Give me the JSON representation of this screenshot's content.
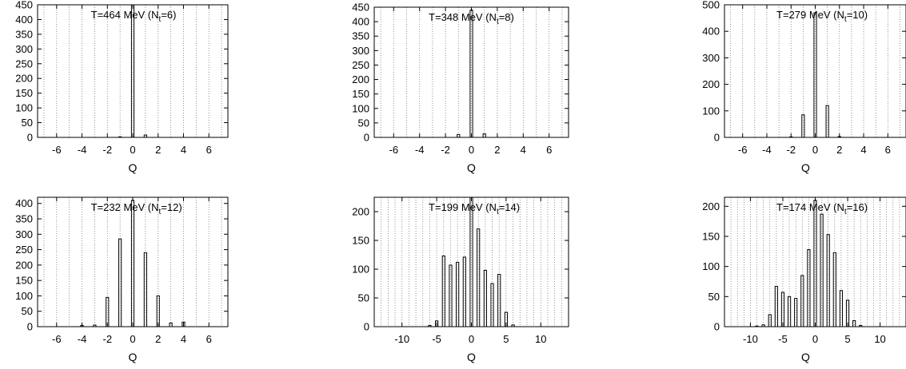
{
  "chart_data": [
    {
      "type": "bar",
      "title": "T=464 MeV (N_t=6)",
      "title_main": "T=464 MeV (N",
      "title_sub": "t",
      "title_tail": "=6)",
      "xlabel": "Q",
      "ylabel": "",
      "xlim": [
        -7.5,
        7.5
      ],
      "ylim": [
        0,
        450
      ],
      "xticks": [
        -6,
        -4,
        -2,
        0,
        2,
        4,
        6
      ],
      "yticks": [
        0,
        50,
        100,
        150,
        200,
        250,
        300,
        350,
        400,
        450
      ],
      "grid": "vertical dotted lines at each integer Q",
      "x": [
        -1,
        0,
        1
      ],
      "values": [
        2,
        450,
        8
      ]
    },
    {
      "type": "bar",
      "title": "T=348 MeV (N_t=8)",
      "title_main": "T=348 MeV (N",
      "title_sub": "t",
      "title_tail": "=8)",
      "xlabel": "Q",
      "ylabel": "",
      "xlim": [
        -7.5,
        7.5
      ],
      "ylim": [
        0,
        450
      ],
      "xticks": [
        -6,
        -4,
        -2,
        0,
        2,
        4,
        6
      ],
      "yticks": [
        0,
        50,
        100,
        150,
        200,
        250,
        300,
        350,
        400,
        450
      ],
      "grid": "vertical dotted lines at each integer Q",
      "x": [
        -1,
        0,
        1
      ],
      "values": [
        10,
        440,
        12
      ]
    },
    {
      "type": "bar",
      "title": "T=279 MeV (N_t=10)",
      "title_main": "T=279 MeV (N",
      "title_sub": "t",
      "title_tail": "=10)",
      "xlabel": "Q",
      "ylabel": "",
      "xlim": [
        -7.5,
        7.5
      ],
      "ylim": [
        0,
        500
      ],
      "xticks": [
        -6,
        -4,
        -2,
        0,
        2,
        4,
        6
      ],
      "yticks": [
        0,
        100,
        200,
        300,
        400,
        500
      ],
      "grid": "vertical dotted lines at each integer Q",
      "x": [
        -2,
        -1,
        0,
        1,
        2
      ],
      "values": [
        2,
        85,
        470,
        120,
        3
      ]
    },
    {
      "type": "bar",
      "title": "T=232 MeV (N_t=12)",
      "title_main": "T=232 MeV (N",
      "title_sub": "t",
      "title_tail": "=12)",
      "xlabel": "Q",
      "ylabel": "",
      "xlim": [
        -7.5,
        7.5
      ],
      "ylim": [
        0,
        420
      ],
      "xticks": [
        -6,
        -4,
        -2,
        0,
        2,
        4,
        6
      ],
      "yticks": [
        0,
        50,
        100,
        150,
        200,
        250,
        300,
        350,
        400
      ],
      "grid": "vertical dotted lines at each integer Q",
      "x": [
        -4,
        -3,
        -2,
        -1,
        0,
        1,
        2,
        3,
        4
      ],
      "values": [
        4,
        5,
        95,
        285,
        410,
        240,
        100,
        12,
        15
      ]
    },
    {
      "type": "bar",
      "title": "T=199 MeV (N_t=14)",
      "title_main": "T=199 MeV (N",
      "title_sub": "t",
      "title_tail": "=14)",
      "xlabel": "Q",
      "ylabel": "",
      "xlim": [
        -14,
        14
      ],
      "ylim": [
        0,
        225
      ],
      "xticks": [
        -10,
        -5,
        0,
        5,
        10
      ],
      "yticks": [
        0,
        50,
        100,
        150,
        200
      ],
      "grid": "vertical dotted lines at each integer Q",
      "x": [
        -6,
        -5,
        -4,
        -3,
        -2,
        -1,
        0,
        1,
        2,
        3,
        4,
        5,
        6
      ],
      "values": [
        2,
        10,
        123,
        107,
        112,
        121,
        225,
        170,
        98,
        75,
        91,
        25,
        3
      ]
    },
    {
      "type": "bar",
      "title": "T=174 MeV (N_t=16)",
      "title_main": "T=174 MeV (N",
      "title_sub": "t",
      "title_tail": "=16)",
      "xlabel": "Q",
      "ylabel": "",
      "xlim": [
        -14,
        14
      ],
      "ylim": [
        0,
        215
      ],
      "xticks": [
        -10,
        -5,
        0,
        5,
        10
      ],
      "yticks": [
        0,
        50,
        100,
        150,
        200
      ],
      "grid": "vertical dotted lines at each integer Q",
      "x": [
        -9,
        -8,
        -7,
        -6,
        -5,
        -4,
        -3,
        -2,
        -1,
        0,
        1,
        2,
        3,
        4,
        5,
        6,
        7
      ],
      "values": [
        1,
        3,
        20,
        67,
        57,
        50,
        47,
        85,
        128,
        210,
        187,
        153,
        123,
        60,
        44,
        10,
        2
      ]
    }
  ]
}
